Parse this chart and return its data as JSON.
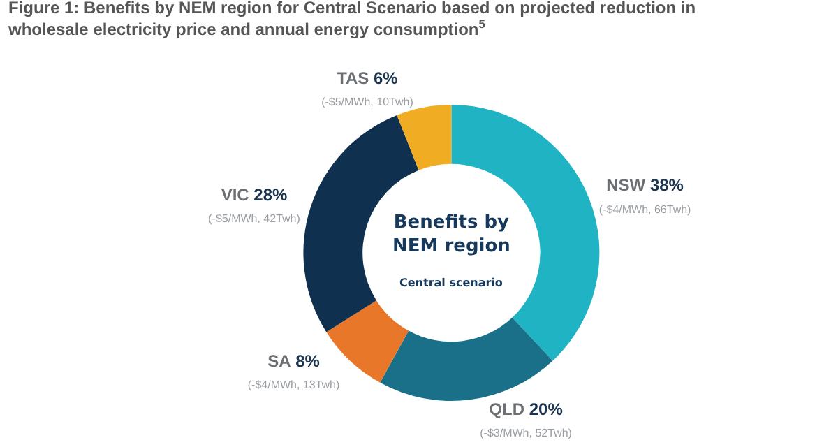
{
  "chart_data": {
    "type": "donut",
    "title": "Figure 1: Benefits by NEM region for Central Scenario based on projected reduction in wholesale electricity price and annual energy consumption$^{5}$",
    "categories": [
      "NSW",
      "QLD",
      "SA",
      "VIC",
      "TAS"
    ],
    "values": [
      38,
      20,
      8,
      28,
      6
    ],
    "value_labels": [
      "38%",
      "20%",
      "8%",
      "28%",
      "6%"
    ],
    "colors": [
      "#1fb3c4",
      "#1a7088",
      "#e8772a",
      "#10304f",
      "#f0ac22"
    ],
    "annotations": [
      "Benefits by NEM region",
      "Central scenario",
      "(-$4/MWh, 66Twh)",
      "(-$3/MWh, 52Twh)",
      "(-$4/MWh, 13Twh)",
      "(-$5/MWh, 42Twh)",
      "(-$5/MWh, 10Twh)"
    ],
    "legend": false
  }
}
